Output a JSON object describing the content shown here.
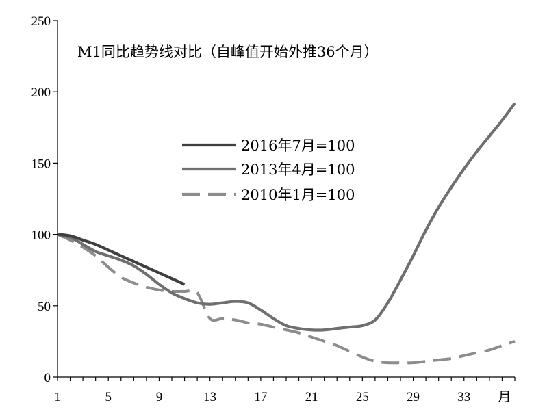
{
  "chart_data": {
    "type": "line",
    "title": "M1同比趋势线对比（自峰值开始外推36个月）",
    "xlabel": "",
    "x_unit_label": "月",
    "ylabel": "",
    "xlim": [
      1,
      37
    ],
    "ylim": [
      0,
      250
    ],
    "x_ticks": [
      1,
      5,
      9,
      13,
      17,
      21,
      25,
      29,
      33
    ],
    "y_ticks": [
      0,
      50,
      100,
      150,
      200,
      250
    ],
    "grid": false,
    "legend_position": "center-left",
    "series": [
      {
        "name": "2016年7月=100",
        "color": "#404040",
        "style": "solid",
        "x": [
          1,
          2,
          3,
          4,
          5,
          6,
          7,
          8,
          9,
          10,
          11
        ],
        "y": [
          100,
          99,
          96,
          93,
          89,
          85,
          81,
          77,
          73,
          69,
          65
        ]
      },
      {
        "name": "2013年4月=100",
        "color": "#6f6f6f",
        "style": "solid",
        "x": [
          1,
          2,
          3,
          4,
          5,
          6,
          7,
          8,
          9,
          10,
          11,
          12,
          13,
          14,
          15,
          16,
          17,
          18,
          19,
          20,
          21,
          22,
          23,
          24,
          25,
          26,
          27,
          28,
          29,
          30,
          31,
          32,
          33,
          34,
          35,
          36,
          37
        ],
        "y": [
          100,
          98,
          93,
          88,
          85,
          82,
          78,
          72,
          65,
          59,
          55,
          52,
          51,
          52,
          53,
          52,
          47,
          41,
          36,
          34,
          33,
          33,
          34,
          35,
          36,
          40,
          52,
          68,
          85,
          103,
          119,
          133,
          146,
          158,
          169,
          180,
          192
        ]
      },
      {
        "name": "2010年1月=100",
        "color": "#8c8c8c",
        "style": "dashed",
        "x": [
          1,
          2,
          3,
          4,
          5,
          6,
          7,
          8,
          9,
          10,
          11,
          12,
          13,
          14,
          15,
          16,
          17,
          18,
          19,
          20,
          21,
          22,
          23,
          24,
          25,
          26,
          27,
          28,
          29,
          30,
          31,
          32,
          33,
          34,
          35,
          36,
          37
        ],
        "y": [
          100,
          96,
          91,
          85,
          77,
          70,
          66,
          63,
          61,
          60,
          60,
          59,
          41,
          41,
          40,
          38,
          37,
          35,
          33,
          31,
          28,
          25,
          22,
          18,
          14,
          11,
          10,
          10,
          10,
          11,
          12,
          13,
          15,
          17,
          19,
          22,
          25
        ]
      }
    ]
  }
}
